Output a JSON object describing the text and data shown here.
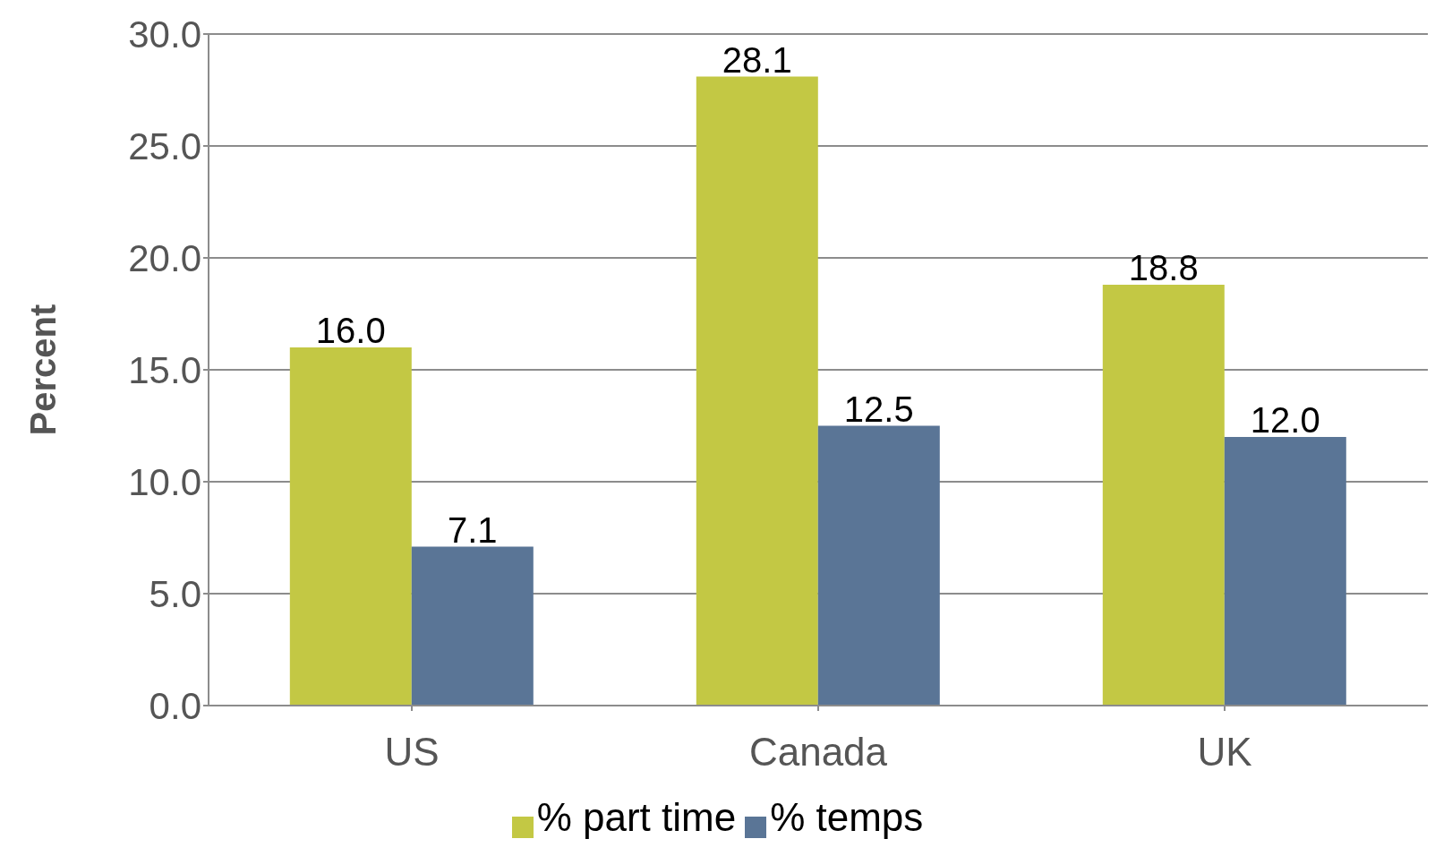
{
  "chart_data": {
    "type": "bar",
    "ylabel": "Percent",
    "categories": [
      "US",
      "Canada",
      "UK"
    ],
    "series": [
      {
        "name": "% part time",
        "color": "#c3c844",
        "values": [
          16.0,
          28.1,
          18.8
        ],
        "value_labels": [
          "16.0",
          "28.1",
          "18.8"
        ]
      },
      {
        "name": "% temps",
        "color": "#5a7596",
        "values": [
          7.1,
          12.5,
          12.0
        ],
        "value_labels": [
          "7.1",
          "12.5",
          "12.0"
        ]
      }
    ],
    "ylim": [
      0,
      30
    ],
    "yticks": [
      {
        "value": 0,
        "label": "0.0"
      },
      {
        "value": 5,
        "label": "5.0"
      },
      {
        "value": 10,
        "label": "10.0"
      },
      {
        "value": 15,
        "label": "15.0"
      },
      {
        "value": 20,
        "label": "20.0"
      },
      {
        "value": 25,
        "label": "25.0"
      },
      {
        "value": 30,
        "label": "30.0"
      }
    ],
    "grid": "y",
    "legend": "bottom"
  }
}
